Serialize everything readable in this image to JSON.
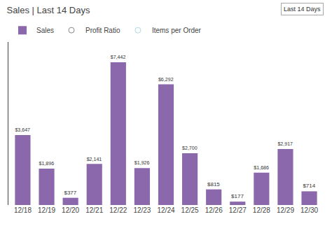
{
  "chart_data": {
    "type": "bar",
    "title": "Sales | Last 14 Days",
    "categories": [
      "12/18",
      "12/19",
      "12/20",
      "12/21",
      "12/22",
      "12/23",
      "12/24",
      "12/25",
      "12/26",
      "12/27",
      "12/28",
      "12/29",
      "12/30"
    ],
    "series": [
      {
        "name": "Sales",
        "type": "bar",
        "color": "#8B68AC",
        "values": [
          3647,
          1896,
          377,
          2141,
          7442,
          1926,
          6292,
          2700,
          815,
          177,
          1686,
          2917,
          714
        ],
        "value_labels": [
          "$3,647",
          "$1,896",
          "$377",
          "$2,141",
          "$7,442",
          "$1,926",
          "$6,292",
          "$2,700",
          "$815",
          "$177",
          "$1,686",
          "$2,917",
          "$714"
        ]
      },
      {
        "name": "Profit Ratio",
        "type": "scatter",
        "color": "#888888",
        "marker": "circle-open",
        "values": [
          null,
          null,
          null,
          null,
          null,
          null,
          null,
          null,
          null,
          null,
          null,
          null,
          null
        ]
      },
      {
        "name": "Items per Order",
        "type": "scatter",
        "color": "#add8e6",
        "marker": "circle-open",
        "values": [
          null,
          null,
          null,
          null,
          null,
          null,
          null,
          null,
          null,
          null,
          null,
          null,
          null
        ]
      }
    ],
    "ylim": [
      0,
      8500
    ],
    "data_labels": true,
    "tick_labels": "x",
    "grid": false,
    "legend": "top",
    "annotations": [
      "Last 14 Days"
    ]
  }
}
